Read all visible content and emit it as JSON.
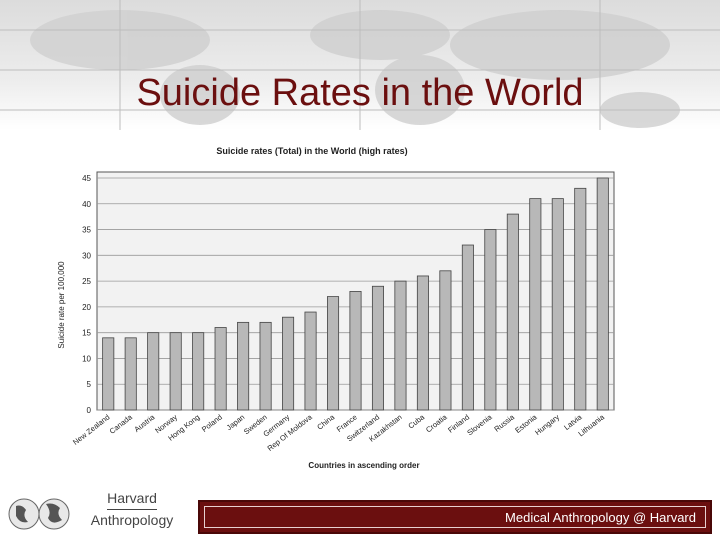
{
  "slide": {
    "title": "Suicide Rates in the World",
    "brand_line1": "Harvard",
    "brand_line2": "Anthropology",
    "footer_text": "Medical Anthropology @ Harvard"
  },
  "colors": {
    "title": "#6b0f0f",
    "footer_bar": "#6b0f0f"
  },
  "chart_data": {
    "type": "bar",
    "title": "Suicide rates (Total) in the World (high rates)",
    "xlabel": "Countries in ascending order",
    "ylabel": "Suicide rate per 100,000",
    "ylim": [
      0,
      45
    ],
    "yticks": [
      0,
      5,
      10,
      15,
      20,
      25,
      30,
      35,
      40,
      45
    ],
    "grid": true,
    "categories": [
      "New Zealand",
      "Canada",
      "Austria",
      "Norway",
      "Hong Kong",
      "Poland",
      "Japan",
      "Sweden",
      "Germany",
      "Rep Of Moldova",
      "China",
      "France",
      "Switzerland",
      "Kazakhstan",
      "Cuba",
      "Croatia",
      "Finland",
      "Slovenia",
      "Russia",
      "Estonia",
      "Hungary",
      "Latvia",
      "Lithuania"
    ],
    "values": [
      14,
      14,
      15,
      15,
      15,
      16,
      17,
      17,
      18,
      19,
      22,
      23,
      24,
      25,
      26,
      27,
      32,
      35,
      38,
      41,
      41,
      43,
      45
    ]
  }
}
